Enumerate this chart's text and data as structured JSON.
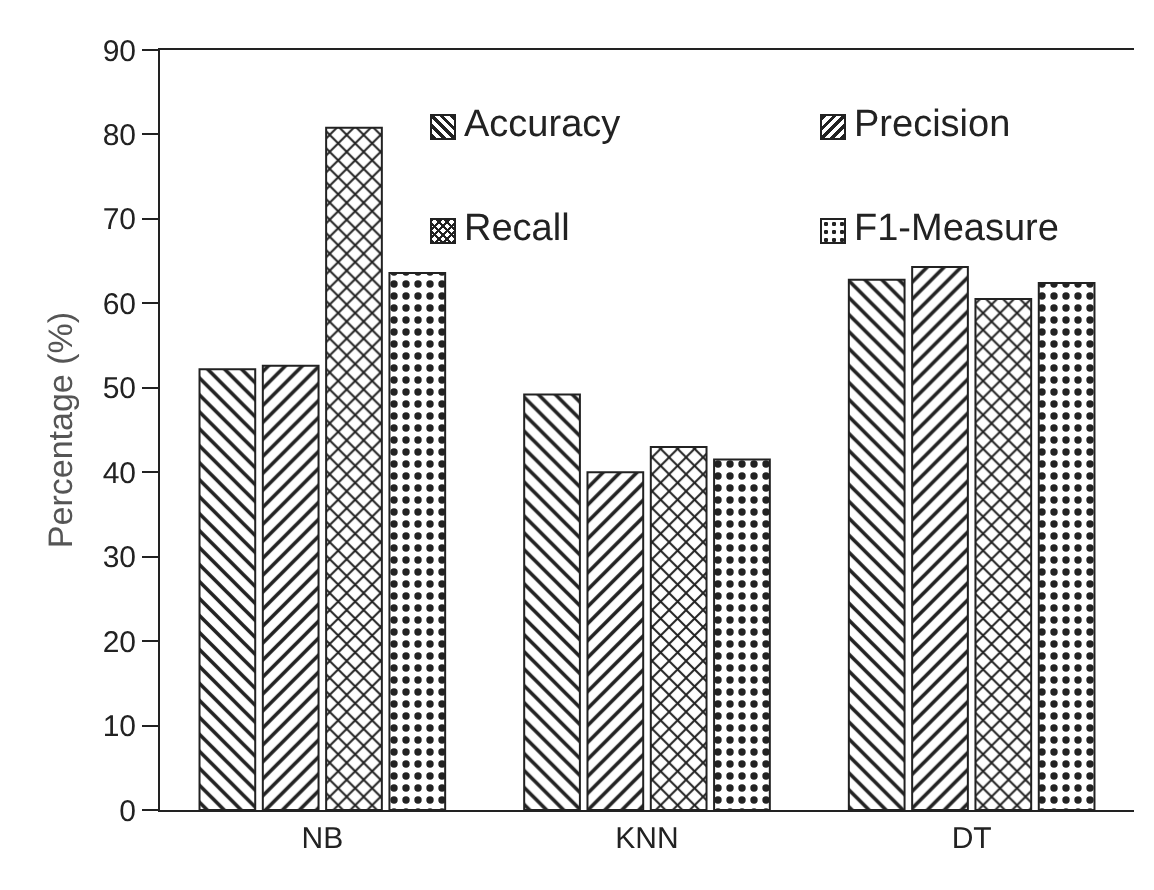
{
  "chart_data": {
    "type": "bar",
    "ylabel": "Percentage (%)",
    "categories": [
      "NB",
      "KNN",
      "DT"
    ],
    "series": [
      {
        "name": "Accuracy",
        "color": "#222222",
        "values": [
          52.2,
          49.2,
          62.8
        ]
      },
      {
        "name": "Precision",
        "color": "#222222",
        "values": [
          52.6,
          40,
          64.3
        ]
      },
      {
        "name": "Recall",
        "color": "#222222",
        "values": [
          80.8,
          43,
          60.5
        ]
      },
      {
        "name": "F1-Measure",
        "color": "#222222",
        "values": [
          63.6,
          41.5,
          62.4
        ]
      }
    ],
    "ylim": [
      0,
      90
    ],
    "yticks": [
      0,
      10,
      20,
      30,
      40,
      50,
      60,
      70,
      80,
      90
    ],
    "grid": false,
    "legend": "top"
  }
}
